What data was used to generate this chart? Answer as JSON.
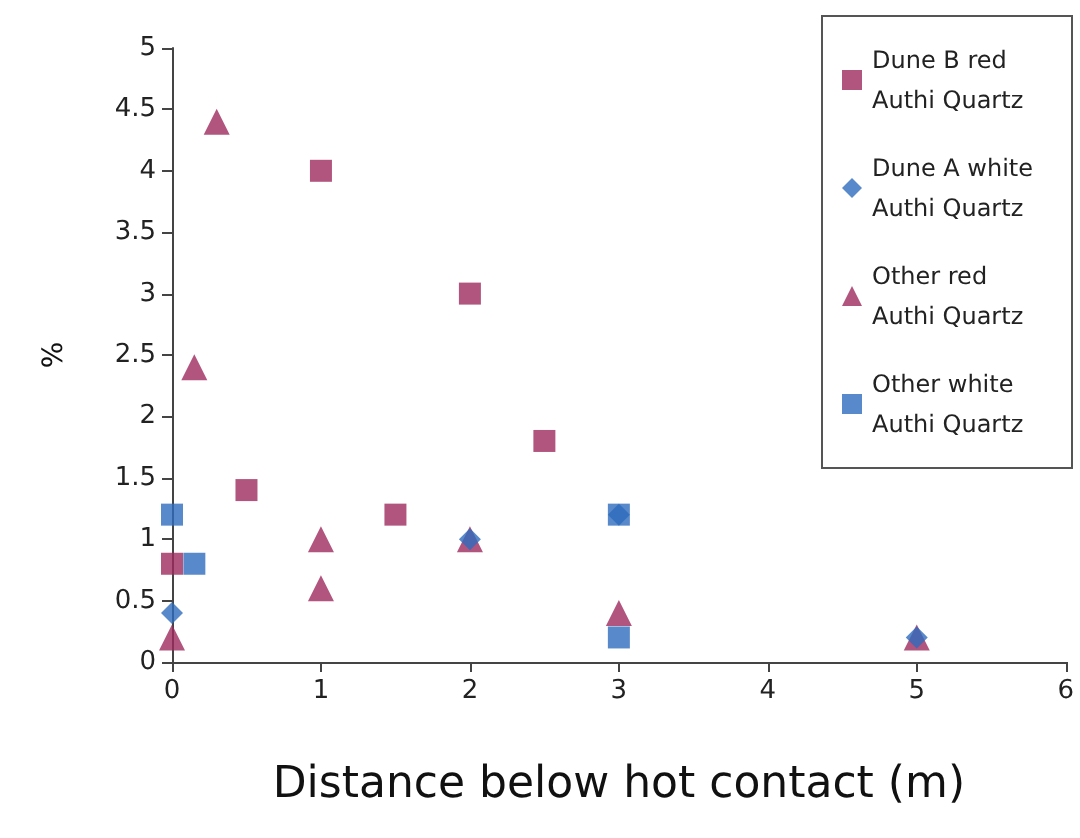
{
  "chart_data": {
    "type": "scatter",
    "xlabel": "Distance below hot contact (m)",
    "ylabel": "%",
    "xlim": [
      0,
      6
    ],
    "xticks": [
      0,
      1,
      2,
      3,
      4,
      5,
      6
    ],
    "ylim": [
      0,
      5
    ],
    "yticks": [
      0,
      0.5,
      1,
      1.5,
      2,
      2.5,
      3,
      3.5,
      4,
      4.5,
      5
    ],
    "grid": false,
    "legend": "right",
    "series": [
      {
        "name": "Dune B red Authi Quartz",
        "color": "#9e2a5e",
        "marker": "square",
        "x": [
          0,
          0.5,
          1,
          1.5,
          2,
          2.5
        ],
        "values": [
          0.8,
          1.4,
          4.0,
          1.2,
          3.0,
          1.8
        ]
      },
      {
        "name": "Dune A white Authi Quartz",
        "color": "#2e6bbd",
        "marker": "diamond",
        "x": [
          0,
          2,
          3,
          5
        ],
        "values": [
          0.4,
          1.0,
          1.2,
          0.2
        ]
      },
      {
        "name": "Other red Authi Quartz",
        "color": "#9e2a5e",
        "marker": "triangle",
        "x": [
          0,
          0.15,
          0.3,
          1,
          1,
          2,
          3,
          5
        ],
        "values": [
          0.2,
          2.4,
          4.4,
          1.0,
          0.6,
          1.0,
          0.4,
          0.2
        ]
      },
      {
        "name": "Other white Authi Quartz",
        "color": "#2e6bbd",
        "marker": "square",
        "x": [
          0,
          0.15,
          3,
          3
        ],
        "values": [
          1.2,
          0.8,
          1.2,
          0.2
        ]
      }
    ]
  }
}
